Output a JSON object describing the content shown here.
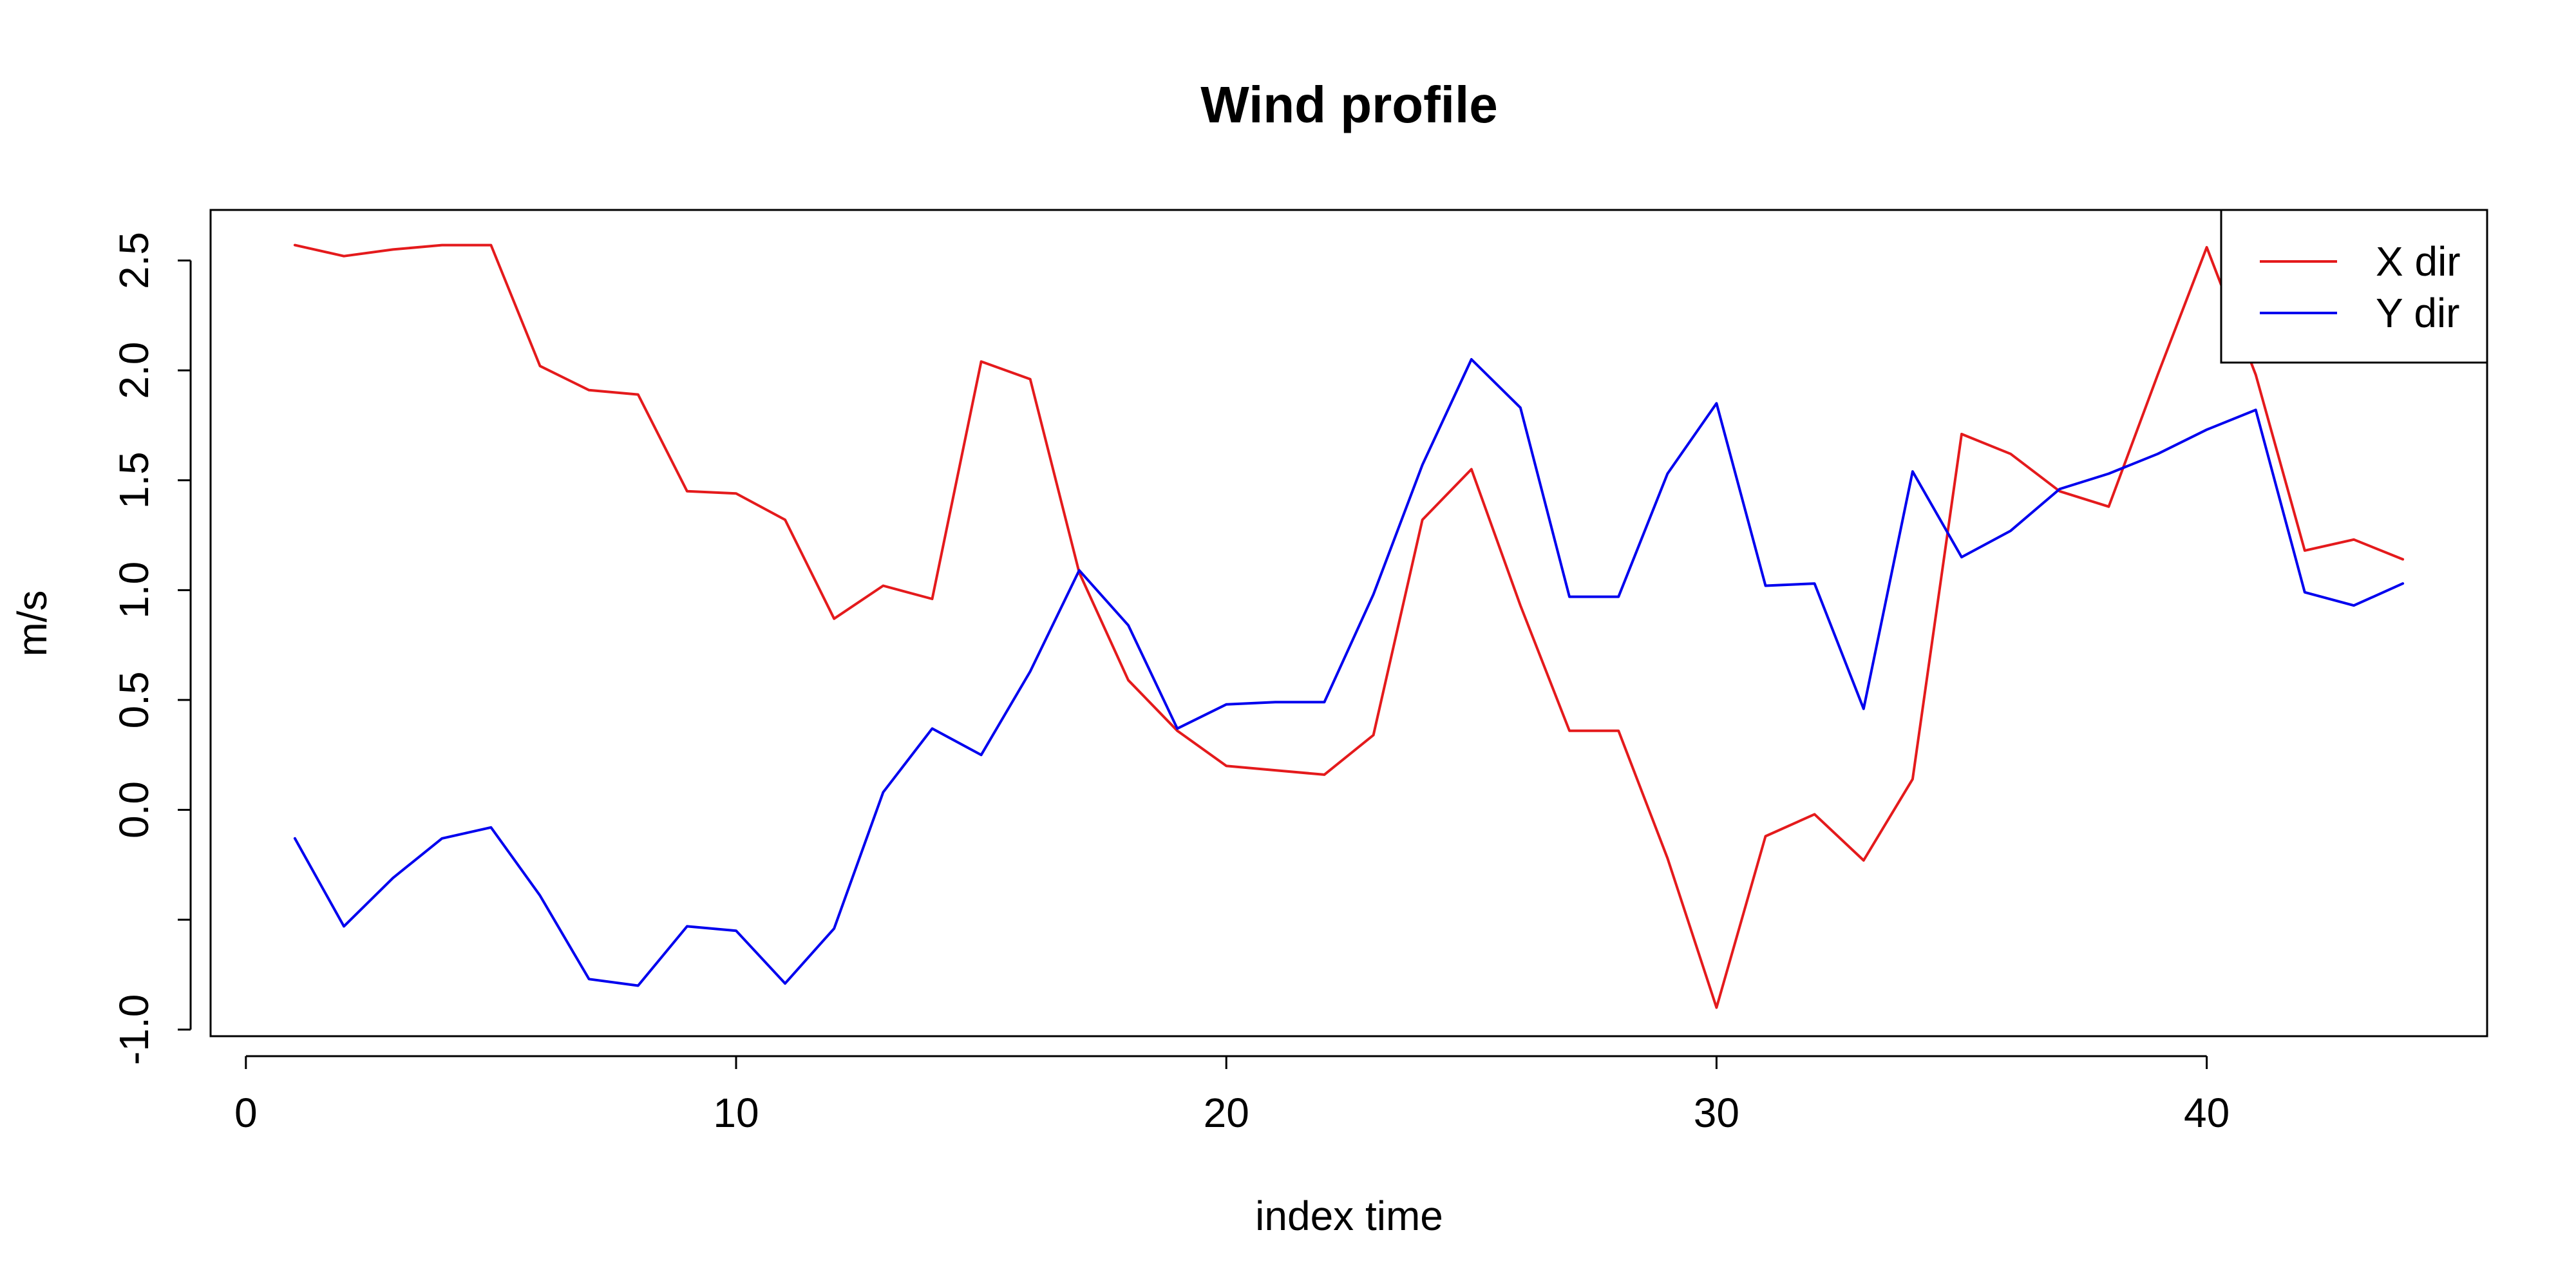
{
  "chart_data": {
    "type": "line",
    "title": "Wind profile",
    "xlabel": "index time",
    "ylabel": "m/s",
    "xlim": [
      -0.72,
      45.72
    ],
    "ylim": [
      -1.03,
      2.73
    ],
    "x_ticks": [
      0,
      10,
      20,
      30,
      40
    ],
    "x_tick_labels": [
      "0",
      "10",
      "20",
      "30",
      "40"
    ],
    "y_ticks": [
      -1.0,
      -0.5,
      0.0,
      0.5,
      1.0,
      1.5,
      2.0,
      2.5
    ],
    "y_tick_labels": [
      "-1.0",
      "",
      "0.0",
      "0.5",
      "1.0",
      "1.5",
      "2.0",
      "2.5"
    ],
    "legend": {
      "placement": "top-right"
    },
    "grid": false,
    "x": [
      1,
      2,
      3,
      4,
      5,
      6,
      7,
      8,
      9,
      10,
      11,
      12,
      13,
      14,
      15,
      16,
      17,
      18,
      19,
      20,
      21,
      22,
      23,
      24,
      25,
      26,
      27,
      28,
      29,
      30,
      31,
      32,
      33,
      34,
      35,
      36,
      37,
      38,
      39,
      40,
      41,
      42,
      43,
      44
    ],
    "series": [
      {
        "name": "X dir",
        "color": "#e41a1c",
        "values": [
          2.57,
          2.52,
          2.55,
          2.57,
          2.57,
          2.02,
          1.91,
          1.89,
          1.45,
          1.44,
          1.32,
          0.87,
          1.02,
          0.96,
          2.04,
          1.96,
          1.08,
          0.59,
          0.36,
          0.2,
          0.18,
          0.16,
          0.34,
          1.32,
          1.55,
          0.93,
          0.36,
          0.36,
          -0.22,
          -0.9,
          -0.12,
          -0.02,
          -0.23,
          0.14,
          1.71,
          1.62,
          1.45,
          1.38,
          1.98,
          2.56,
          1.98,
          1.18,
          1.23,
          1.14
        ]
      },
      {
        "name": "Y dir",
        "color": "#0000ee",
        "values": [
          -0.13,
          -0.53,
          -0.31,
          -0.13,
          -0.08,
          -0.39,
          -0.77,
          -0.8,
          -0.53,
          -0.55,
          -0.79,
          -0.54,
          0.08,
          0.37,
          0.25,
          0.63,
          1.09,
          0.84,
          0.37,
          0.48,
          0.49,
          0.49,
          0.98,
          1.57,
          2.05,
          1.83,
          0.97,
          0.97,
          1.53,
          1.85,
          1.02,
          1.03,
          0.46,
          1.54,
          1.15,
          1.27,
          1.46,
          1.53,
          1.62,
          1.73,
          1.82,
          0.99,
          0.93,
          1.03
        ]
      }
    ]
  }
}
